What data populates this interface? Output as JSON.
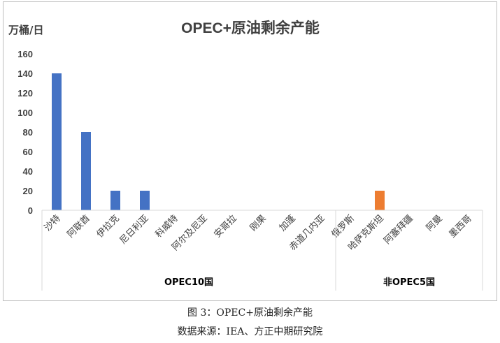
{
  "chart_data": {
    "type": "bar",
    "title": "OPEC+原油剩余产能",
    "ylabel": "万桶/日",
    "ylim": [
      0,
      160
    ],
    "yticks": [
      0,
      20,
      40,
      60,
      80,
      100,
      120,
      140,
      160
    ],
    "grid": false,
    "categories": [
      "沙特",
      "阿联酋",
      "伊拉克",
      "尼日利亚",
      "科威特",
      "阿尔及尼亚",
      "安哥拉",
      "刚果",
      "加蓬",
      "赤道几内亚",
      "俄罗斯",
      "哈萨克斯坦",
      "阿塞拜疆",
      "阿曼",
      "墨西哥"
    ],
    "values": [
      140,
      80,
      20,
      20,
      0,
      0,
      0,
      0,
      0,
      0,
      0,
      20,
      0,
      0,
      0
    ],
    "groups": [
      {
        "label": "OPEC10国",
        "count": 10,
        "color": "#4472C4"
      },
      {
        "label": "非OPEC5国",
        "count": 5,
        "color": "#ED7D31"
      }
    ]
  },
  "captions": {
    "figure": "图 3：OPEC+原油剩余产能",
    "source": "数据来源：IEA、方正中期研究院"
  }
}
